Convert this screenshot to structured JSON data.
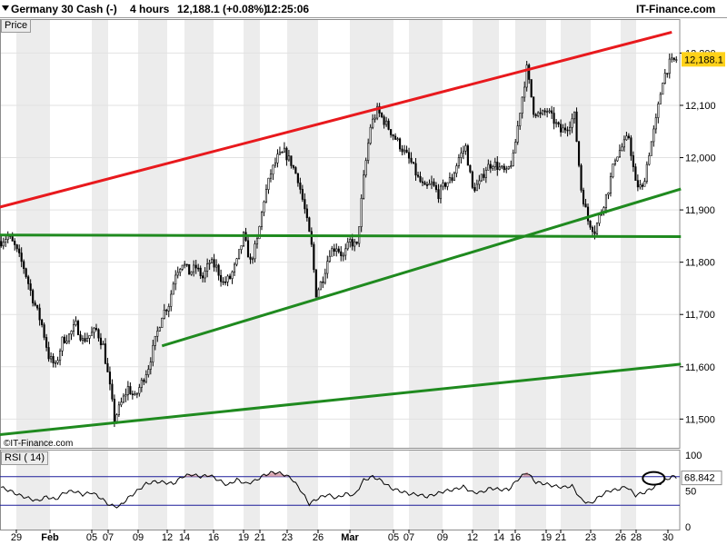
{
  "header": {
    "icon": "dropdown-triangle-icon",
    "instrument": "Germany 30 Cash (-)",
    "timeframe": "4 hours",
    "last_change": "12,188.1 (+0.08%)",
    "time": "12:25:06",
    "brand": "IT-Finance.com"
  },
  "price_panel": {
    "tag": "Price",
    "watermark": "©IT-Finance.com",
    "last_label": "12,188.1"
  },
  "rsi_panel": {
    "tag": "RSI ( 14)",
    "last_label": "68.842"
  },
  "colors": {
    "resistance": "#e8191d",
    "support": "#1f8a1f",
    "candle": "#000000",
    "last_label_bg": "#ffd21a",
    "rsi_line": "#000000",
    "rsi_ref": "#1d1d9a",
    "rsi_overbought_fill": "#d9a5b0",
    "shade": "#ececec"
  },
  "chart_data": [
    {
      "type": "candlestick",
      "timeframe": "4 hours",
      "y_axis_ticks": [
        11500,
        11600,
        11700,
        11800,
        11900,
        12000,
        12100,
        12200
      ],
      "y_axis_labels": [
        "11,500",
        "11,600",
        "11,700",
        "11,800",
        "11,900",
        "12,000",
        "12,100",
        "12,200"
      ],
      "ylim": [
        11445,
        12265
      ],
      "x_axis_labels": [
        "29",
        "Feb",
        "05",
        "07",
        "09",
        "12",
        "14",
        "16",
        "19",
        "21",
        "23",
        "26",
        "Mar",
        "05",
        "07",
        "09",
        "12",
        "14",
        "16",
        "19",
        "21",
        "23",
        "26",
        "28",
        "30"
      ],
      "close_path": [
        [
          0,
          11840
        ],
        [
          3,
          11850
        ],
        [
          6,
          11830
        ],
        [
          10,
          11790
        ],
        [
          14,
          11730
        ],
        [
          18,
          11680
        ],
        [
          21,
          11620
        ],
        [
          24,
          11600
        ],
        [
          27,
          11650
        ],
        [
          30,
          11660
        ],
        [
          33,
          11680
        ],
        [
          36,
          11650
        ],
        [
          39,
          11660
        ],
        [
          42,
          11670
        ],
        [
          45,
          11640
        ],
        [
          48,
          11560
        ],
        [
          50,
          11500
        ],
        [
          53,
          11530
        ],
        [
          56,
          11560
        ],
        [
          59,
          11540
        ],
        [
          62,
          11570
        ],
        [
          65,
          11600
        ],
        [
          68,
          11650
        ],
        [
          71,
          11700
        ],
        [
          74,
          11720
        ],
        [
          77,
          11780
        ],
        [
          80,
          11800
        ],
        [
          83,
          11780
        ],
        [
          86,
          11790
        ],
        [
          89,
          11770
        ],
        [
          92,
          11800
        ],
        [
          95,
          11790
        ],
        [
          98,
          11760
        ],
        [
          101,
          11770
        ],
        [
          104,
          11800
        ],
        [
          107,
          11850
        ],
        [
          110,
          11800
        ],
        [
          113,
          11840
        ],
        [
          116,
          11920
        ],
        [
          119,
          11970
        ],
        [
          122,
          12000
        ],
        [
          125,
          12010
        ],
        [
          128,
          11990
        ],
        [
          131,
          11960
        ],
        [
          134,
          11900
        ],
        [
          137,
          11830
        ],
        [
          139,
          11740
        ],
        [
          142,
          11770
        ],
        [
          145,
          11820
        ],
        [
          148,
          11830
        ],
        [
          151,
          11810
        ],
        [
          154,
          11840
        ],
        [
          157,
          11830
        ],
        [
          160,
          11960
        ],
        [
          163,
          12060
        ],
        [
          166,
          12090
        ],
        [
          169,
          12070
        ],
        [
          172,
          12050
        ],
        [
          175,
          12030
        ],
        [
          178,
          12010
        ],
        [
          181,
          11990
        ],
        [
          184,
          11960
        ],
        [
          187,
          11940
        ],
        [
          190,
          11950
        ],
        [
          193,
          11930
        ],
        [
          196,
          11950
        ],
        [
          199,
          11960
        ],
        [
          202,
          12000
        ],
        [
          205,
          12020
        ],
        [
          208,
          11940
        ],
        [
          211,
          11950
        ],
        [
          214,
          11980
        ],
        [
          217,
          11990
        ],
        [
          220,
          11980
        ],
        [
          223,
          11970
        ],
        [
          226,
          12000
        ],
        [
          229,
          12090
        ],
        [
          232,
          12170
        ],
        [
          235,
          12090
        ],
        [
          238,
          12080
        ],
        [
          241,
          12090
        ],
        [
          244,
          12070
        ],
        [
          247,
          12050
        ],
        [
          250,
          12060
        ],
        [
          253,
          12080
        ],
        [
          256,
          11940
        ],
        [
          259,
          11880
        ],
        [
          262,
          11860
        ],
        [
          265,
          11900
        ],
        [
          268,
          11940
        ],
        [
          271,
          12000
        ],
        [
          274,
          12020
        ],
        [
          277,
          12040
        ],
        [
          280,
          11950
        ],
        [
          283,
          11940
        ],
        [
          286,
          12010
        ],
        [
          289,
          12070
        ],
        [
          292,
          12150
        ],
        [
          295,
          12180
        ],
        [
          298,
          12188
        ]
      ]
    },
    {
      "type": "line",
      "name": "RSI ( 14)",
      "ylim": [
        0,
        100
      ],
      "y_axis_ticks": [
        0,
        50,
        100
      ],
      "y_axis_labels": [
        "0",
        "50",
        "100"
      ],
      "reference_levels": [
        30,
        70
      ],
      "last_value": 68.842,
      "values": [
        [
          0,
          55
        ],
        [
          4,
          50
        ],
        [
          8,
          44
        ],
        [
          12,
          40
        ],
        [
          16,
          36
        ],
        [
          20,
          42
        ],
        [
          24,
          38
        ],
        [
          28,
          48
        ],
        [
          32,
          50
        ],
        [
          36,
          45
        ],
        [
          40,
          48
        ],
        [
          44,
          40
        ],
        [
          48,
          30
        ],
        [
          52,
          28
        ],
        [
          56,
          40
        ],
        [
          60,
          50
        ],
        [
          64,
          60
        ],
        [
          68,
          63
        ],
        [
          72,
          62
        ],
        [
          76,
          60
        ],
        [
          80,
          70
        ],
        [
          84,
          73
        ],
        [
          88,
          70
        ],
        [
          92,
          72
        ],
        [
          96,
          65
        ],
        [
          100,
          58
        ],
        [
          104,
          66
        ],
        [
          108,
          60
        ],
        [
          112,
          64
        ],
        [
          116,
          72
        ],
        [
          120,
          76
        ],
        [
          124,
          74
        ],
        [
          128,
          68
        ],
        [
          132,
          52
        ],
        [
          136,
          32
        ],
        [
          140,
          40
        ],
        [
          144,
          45
        ],
        [
          148,
          40
        ],
        [
          152,
          46
        ],
        [
          156,
          44
        ],
        [
          160,
          65
        ],
        [
          164,
          70
        ],
        [
          168,
          64
        ],
        [
          172,
          54
        ],
        [
          176,
          50
        ],
        [
          180,
          46
        ],
        [
          184,
          45
        ],
        [
          188,
          42
        ],
        [
          192,
          46
        ],
        [
          196,
          50
        ],
        [
          200,
          52
        ],
        [
          204,
          56
        ],
        [
          208,
          48
        ],
        [
          212,
          48
        ],
        [
          216,
          54
        ],
        [
          220,
          52
        ],
        [
          224,
          52
        ],
        [
          228,
          66
        ],
        [
          232,
          76
        ],
        [
          236,
          62
        ],
        [
          240,
          60
        ],
        [
          244,
          57
        ],
        [
          248,
          55
        ],
        [
          252,
          57
        ],
        [
          256,
          38
        ],
        [
          260,
          32
        ],
        [
          264,
          42
        ],
        [
          268,
          50
        ],
        [
          272,
          52
        ],
        [
          276,
          56
        ],
        [
          280,
          44
        ],
        [
          284,
          48
        ],
        [
          288,
          55
        ],
        [
          292,
          63
        ],
        [
          296,
          70
        ],
        [
          298,
          69
        ]
      ]
    }
  ],
  "trendlines": [
    {
      "name": "upper-resistance-line",
      "color": "resistance",
      "p1": [
        -1,
        11905
      ],
      "p2": [
        296,
        12240
      ]
    },
    {
      "name": "horizontal-support-line",
      "color": "support",
      "p1": [
        -1,
        11852
      ],
      "p2": [
        300,
        11849
      ]
    },
    {
      "name": "middle-support-line",
      "color": "support",
      "p1": [
        71,
        11640
      ],
      "p2": [
        300,
        11940
      ]
    },
    {
      "name": "lower-support-line",
      "color": "support",
      "p1": [
        -1,
        11470
      ],
      "p2": [
        300,
        11605
      ]
    }
  ]
}
